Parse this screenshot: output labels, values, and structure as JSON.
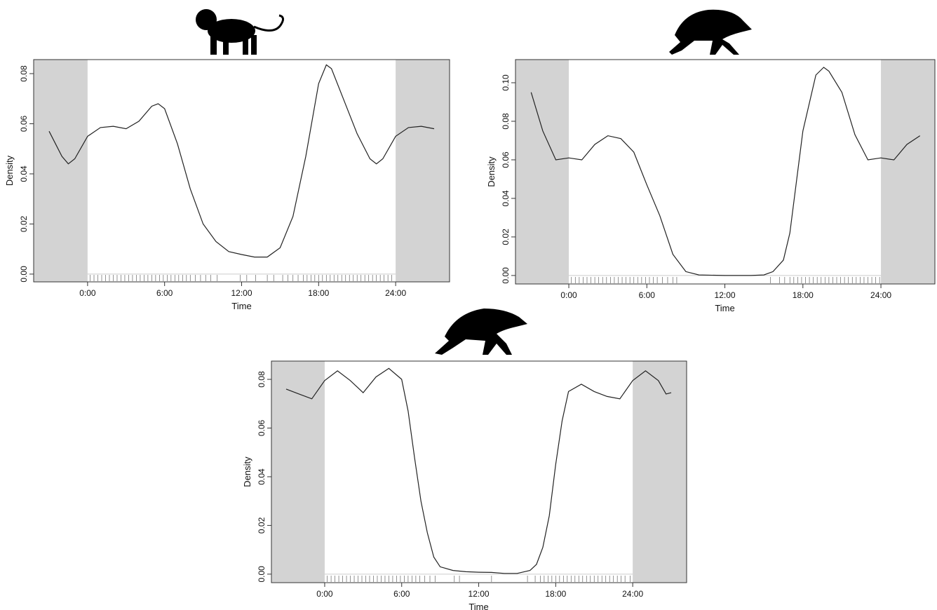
{
  "chart_data": [
    {
      "type": "line",
      "xlabel": "Time",
      "ylabel": "Density",
      "color": "#222222",
      "x": [
        -3,
        -2,
        -1.5,
        -1,
        0,
        1,
        2,
        3,
        4,
        5,
        5.5,
        6,
        7,
        8,
        9,
        10,
        11,
        12,
        13,
        14,
        15,
        16,
        17,
        18,
        18.6,
        19,
        20,
        21,
        22,
        22.5,
        23,
        24,
        25,
        26,
        27
      ],
      "values": [
        0.057,
        0.047,
        0.044,
        0.046,
        0.055,
        0.0585,
        0.059,
        0.058,
        0.061,
        0.067,
        0.068,
        0.066,
        0.052,
        0.034,
        0.02,
        0.013,
        0.009,
        0.0078,
        0.0068,
        0.0068,
        0.0105,
        0.023,
        0.047,
        0.076,
        0.0835,
        0.082,
        0.069,
        0.056,
        0.046,
        0.044,
        0.046,
        0.055,
        0.0585,
        0.059,
        0.058
      ],
      "rug": [
        0.2,
        0.5,
        0.8,
        1.1,
        1.4,
        1.7,
        2.0,
        2.3,
        2.6,
        2.9,
        3.2,
        3.5,
        3.8,
        4.1,
        4.4,
        4.7,
        5.0,
        5.3,
        5.6,
        5.9,
        6.2,
        6.5,
        6.8,
        7.1,
        7.4,
        7.7,
        8.0,
        8.4,
        8.8,
        9.2,
        9.6,
        10.1,
        11.9,
        12.4,
        13.1,
        14.0,
        14.5,
        15.2,
        15.6,
        16.0,
        16.4,
        16.8,
        17.1,
        17.4,
        17.7,
        18.0,
        18.3,
        18.6,
        18.9,
        19.2,
        19.5,
        19.8,
        20.1,
        20.4,
        20.7,
        21.0,
        21.3,
        21.6,
        21.9,
        22.2,
        22.5,
        22.8,
        23.1,
        23.4,
        23.7
      ],
      "xlim": [
        -4.2,
        28.2
      ],
      "xticks": [
        {
          "value": 0,
          "label": "0:00"
        },
        {
          "value": 6,
          "label": "6:00"
        },
        {
          "value": 12,
          "label": "12:00"
        },
        {
          "value": 18,
          "label": "18:00"
        },
        {
          "value": 24,
          "label": "24:00"
        }
      ],
      "ylim": [
        -0.0031,
        0.0856
      ],
      "yticks": [
        {
          "value": 0,
          "label": "0.00"
        },
        0.02,
        0.04,
        0.06,
        0.08
      ]
    },
    {
      "type": "line",
      "xlabel": "Time",
      "ylabel": "Density",
      "color": "#222222",
      "x": [
        -2.9,
        -2,
        -1,
        0,
        1,
        2,
        3,
        4,
        5,
        6,
        7,
        8,
        9,
        10,
        12,
        14,
        15,
        15.7,
        16.5,
        17,
        18,
        19,
        19.6,
        20,
        21,
        22,
        23,
        24,
        25,
        26,
        27
      ],
      "values": [
        0.095,
        0.075,
        0.06,
        0.061,
        0.06,
        0.068,
        0.0725,
        0.071,
        0.064,
        0.047,
        0.031,
        0.011,
        0.002,
        0.0003,
        0,
        0,
        0.0003,
        0.002,
        0.008,
        0.022,
        0.075,
        0.104,
        0.108,
        0.106,
        0.095,
        0.073,
        0.06,
        0.061,
        0.06,
        0.068,
        0.0725
      ],
      "rug": [
        0.2,
        0.5,
        0.8,
        1.1,
        1.4,
        1.7,
        2.0,
        2.3,
        2.6,
        2.9,
        3.2,
        3.5,
        3.8,
        4.1,
        4.4,
        4.7,
        5.0,
        5.3,
        5.6,
        5.9,
        6.2,
        6.5,
        6.8,
        7.2,
        7.6,
        8.0,
        8.3,
        15.5,
        16.2,
        16.6,
        17.0,
        17.3,
        17.6,
        17.9,
        18.2,
        18.5,
        18.8,
        19.1,
        19.4,
        19.7,
        20.0,
        20.3,
        20.6,
        20.9,
        21.2,
        21.5,
        21.8,
        22.1,
        22.4,
        22.7,
        23.0,
        23.3,
        23.6,
        23.9
      ],
      "xlim": [
        -4.1,
        28.15
      ],
      "xticks": [
        {
          "value": 0,
          "label": "0:00"
        },
        {
          "value": 6,
          "label": "6:00"
        },
        {
          "value": 12,
          "label": "12:00"
        },
        {
          "value": 18,
          "label": "18:00"
        },
        {
          "value": 24,
          "label": "24:00"
        }
      ],
      "ylim": [
        -0.0044,
        0.112
      ],
      "yticks": [
        {
          "value": 0,
          "label": "0.00"
        },
        0.02,
        0.04,
        0.06,
        0.08,
        {
          "value": 0.1,
          "label": "0.10"
        }
      ]
    },
    {
      "type": "line",
      "xlabel": "Time",
      "ylabel": "Density",
      "color": "#222222",
      "x": [
        -3,
        -2,
        -1,
        0,
        1,
        2,
        3,
        4,
        5,
        6,
        6.5,
        7,
        7.5,
        8,
        8.5,
        9,
        10,
        11,
        12,
        13,
        14,
        15,
        16,
        16.5,
        17,
        17.5,
        18,
        18.5,
        19,
        20,
        21,
        22,
        23,
        24,
        25,
        26,
        26.6,
        27
      ],
      "values": [
        0.076,
        0.074,
        0.072,
        0.0795,
        0.0835,
        0.0795,
        0.0745,
        0.081,
        0.0845,
        0.08,
        0.067,
        0.048,
        0.03,
        0.017,
        0.007,
        0.003,
        0.0015,
        0.001,
        0.0008,
        0.0007,
        0.0003,
        0.0003,
        0.0015,
        0.004,
        0.011,
        0.024,
        0.045,
        0.063,
        0.075,
        0.078,
        0.075,
        0.073,
        0.072,
        0.0795,
        0.0835,
        0.0795,
        0.074,
        0.0745
      ],
      "rug": [
        0.2,
        0.5,
        0.8,
        1.1,
        1.4,
        1.7,
        2.0,
        2.3,
        2.6,
        2.9,
        3.2,
        3.5,
        3.8,
        4.1,
        4.4,
        4.7,
        5.0,
        5.3,
        5.6,
        5.9,
        6.2,
        6.5,
        6.8,
        7.1,
        7.4,
        7.8,
        8.2,
        8.6,
        10.1,
        10.5,
        13.0,
        15.8,
        16.4,
        16.8,
        17.1,
        17.4,
        17.7,
        18.0,
        18.3,
        18.6,
        18.9,
        19.2,
        19.5,
        19.8,
        20.1,
        20.4,
        20.7,
        21.0,
        21.3,
        21.6,
        21.9,
        22.2,
        22.5,
        22.8,
        23.1,
        23.4,
        23.8
      ],
      "xlim": [
        -4.15,
        28.2
      ],
      "xticks": [
        {
          "value": 0,
          "label": "0:00"
        },
        {
          "value": 6,
          "label": "6:00"
        },
        {
          "value": 12,
          "label": "12:00"
        },
        {
          "value": 18,
          "label": "18:00"
        },
        {
          "value": 24,
          "label": "24:00"
        }
      ],
      "ylim": [
        -0.0035,
        0.0875
      ],
      "yticks": [
        {
          "value": 0,
          "label": "0.00"
        },
        0.02,
        0.04,
        0.06,
        0.08
      ]
    }
  ]
}
